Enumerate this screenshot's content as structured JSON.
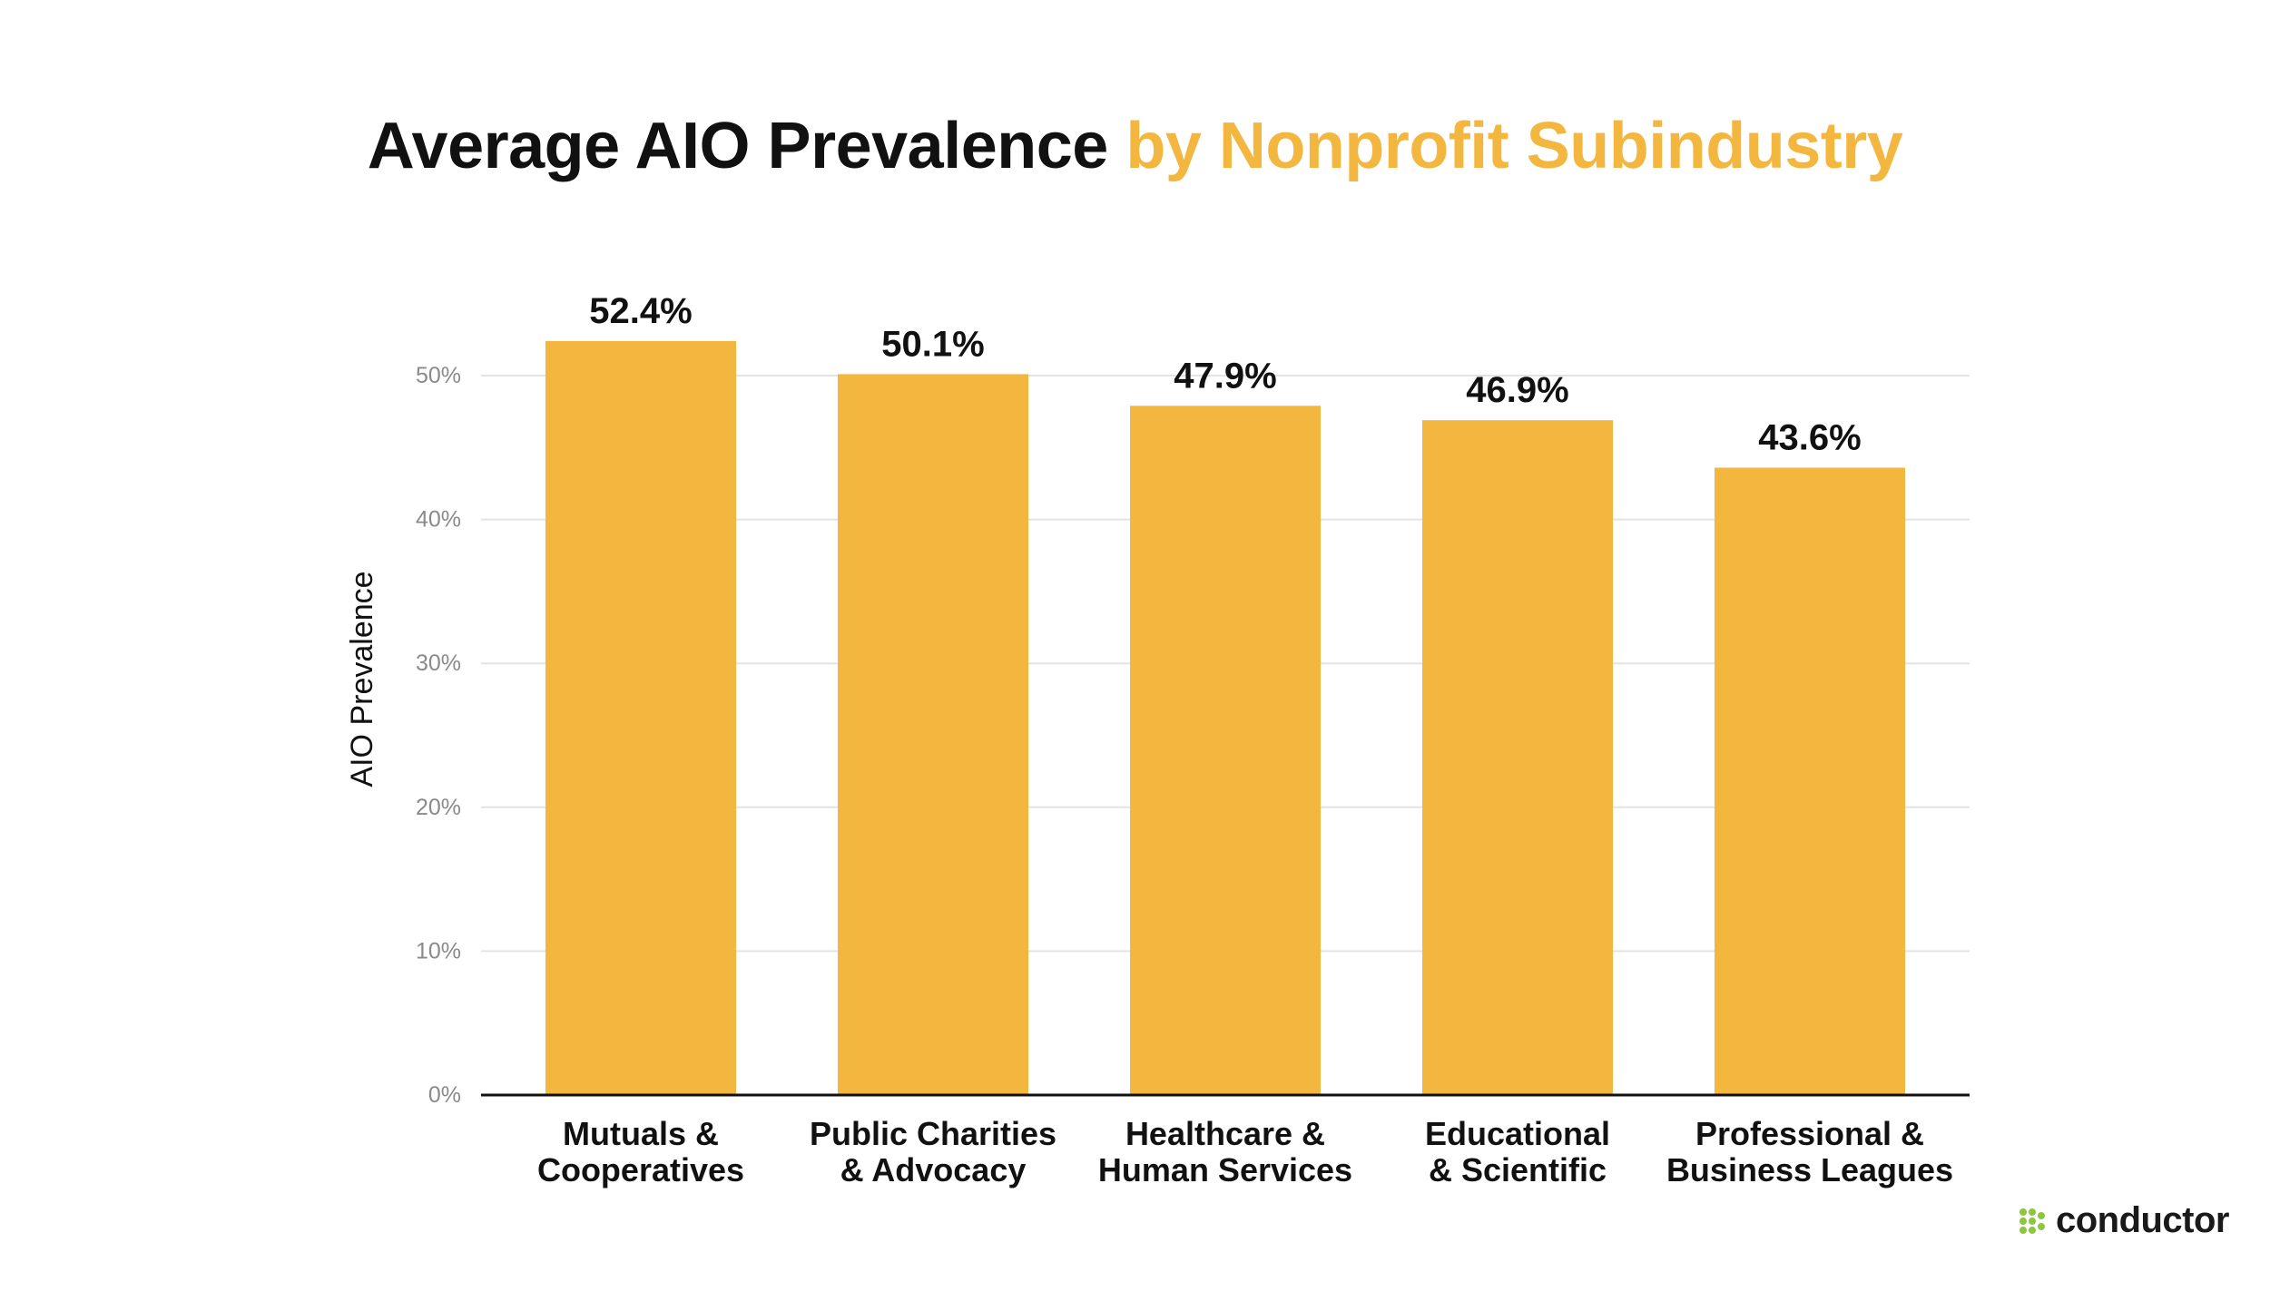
{
  "title": {
    "main": "Average AIO Prevalence",
    "accent": "by Nonprofit Subindustry"
  },
  "brand": {
    "name": "conductor",
    "logo_icon": "conductor-dots-icon",
    "logo_color": "#8DC63F"
  },
  "colors": {
    "bar": "#F3B63F",
    "accent": "#F3B63F",
    "grid": "#e3e3e3",
    "axis": "#111111",
    "tick_label": "#8a8a8a"
  },
  "chart_data": {
    "type": "bar",
    "ylabel": "AIO Prevalence",
    "xlabel": "",
    "ylim": [
      0,
      50
    ],
    "yticks": [
      0,
      10,
      20,
      30,
      40,
      50
    ],
    "ytick_labels": [
      "0%",
      "10%",
      "20%",
      "30%",
      "40%",
      "50%"
    ],
    "grid": true,
    "categories": [
      [
        "Mutuals &",
        "Cooperatives"
      ],
      [
        "Public Charities",
        "& Advocacy"
      ],
      [
        "Healthcare &",
        "Human Services"
      ],
      [
        "Educational",
        "& Scientific"
      ],
      [
        "Professional &",
        "Business Leagues"
      ]
    ],
    "values": [
      52.4,
      50.1,
      47.9,
      46.9,
      43.6
    ],
    "value_labels": [
      "52.4%",
      "50.1%",
      "47.9%",
      "46.9%",
      "43.6%"
    ]
  }
}
